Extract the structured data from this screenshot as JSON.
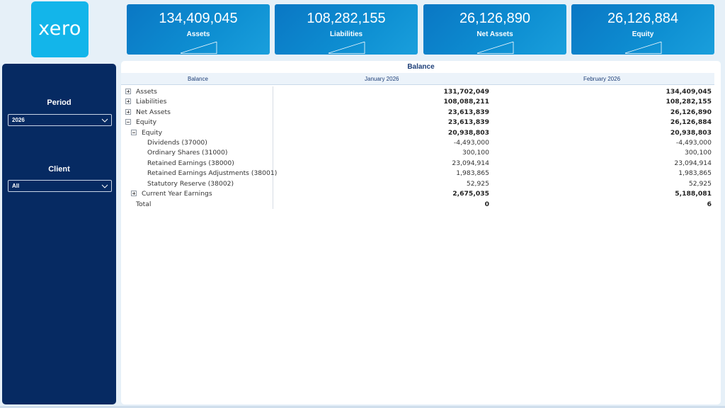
{
  "logo": {
    "text": "xero"
  },
  "kpis": [
    {
      "value": "134,409,045",
      "label": "Assets"
    },
    {
      "value": "108,282,155",
      "label": "Liabilities"
    },
    {
      "value": "26,126,890",
      "label": "Net Assets"
    },
    {
      "value": "26,126,884",
      "label": "Equity"
    }
  ],
  "filters": {
    "period": {
      "title": "Period",
      "value": "2026"
    },
    "client": {
      "title": "Client",
      "value": "All"
    }
  },
  "table": {
    "title": "Balance",
    "headers": [
      "Balance",
      "January 2026",
      "February 2026"
    ],
    "rows": [
      {
        "label": "Assets",
        "jan": "131,702,049",
        "feb": "134,409,045"
      },
      {
        "label": "Liabilities",
        "jan": "108,088,211",
        "feb": "108,282,155"
      },
      {
        "label": "Net Assets",
        "jan": "23,613,839",
        "feb": "26,126,890"
      },
      {
        "label": "Equity",
        "jan": "23,613,839",
        "feb": "26,126,884"
      },
      {
        "label": "Equity",
        "jan": "20,938,803",
        "feb": "20,938,803"
      },
      {
        "label": "Dividends (37000)",
        "jan": "-4,493,000",
        "feb": "-4,493,000"
      },
      {
        "label": "Ordinary Shares (31000)",
        "jan": "300,100",
        "feb": "300,100"
      },
      {
        "label": "Retained Earnings (38000)",
        "jan": "23,094,914",
        "feb": "23,094,914"
      },
      {
        "label": "Retained Earnings Adjustments (38001)",
        "jan": "1,983,865",
        "feb": "1,983,865"
      },
      {
        "label": "Statutory Reserve (38002)",
        "jan": "52,925",
        "feb": "52,925"
      },
      {
        "label": "Current Year Earnings",
        "jan": "2,675,035",
        "feb": "5,188,081"
      },
      {
        "label": "Total",
        "jan": "0",
        "feb": "6"
      }
    ]
  },
  "icons": {
    "expand": "plus-box-icon",
    "collapse": "minus-box-icon",
    "dropdown": "chevron-down-icon"
  },
  "colors": {
    "background": "#e6f0f8",
    "logo": "#13b5ea",
    "kpi": "#0a77c4",
    "slicer_panel": "#062a62",
    "header_text": "#1e3f78"
  }
}
